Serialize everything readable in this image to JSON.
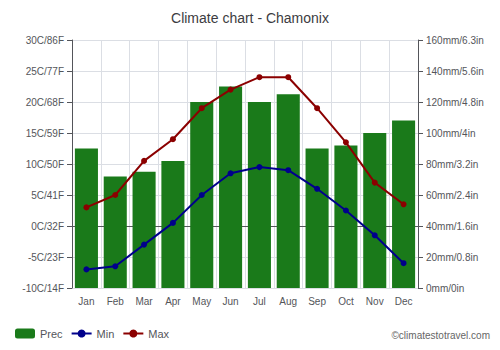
{
  "chart_data": {
    "type": "bar",
    "title": "Climate chart - Chamonix",
    "annotations": [
      "©climatestotravel.com"
    ],
    "categories": [
      "Jan",
      "Feb",
      "Mar",
      "Apr",
      "May",
      "Jun",
      "Jul",
      "Aug",
      "Sep",
      "Oct",
      "Nov",
      "Dec"
    ],
    "series": [
      {
        "name": "Prec",
        "type": "bar",
        "axis": "y2",
        "color": "#1a7a1a",
        "values": [
          90,
          72,
          75,
          82,
          120,
          130,
          120,
          125,
          90,
          92,
          100,
          108
        ]
      },
      {
        "name": "Min",
        "type": "line",
        "marker": "circle",
        "color": "#00008b",
        "values": [
          -7,
          -6.5,
          -3,
          0.5,
          5,
          8.5,
          9.5,
          9,
          6,
          2.5,
          -1.5,
          -6
        ]
      },
      {
        "name": "Max",
        "type": "line",
        "marker": "circle",
        "color": "#8b0000",
        "values": [
          3,
          5,
          10.5,
          14,
          19,
          22,
          24,
          24,
          19,
          13.5,
          7,
          3.5
        ]
      }
    ],
    "ylim": [
      -10,
      30
    ],
    "yticks": [
      {
        "value": -10,
        "label": "-10C/14F"
      },
      {
        "value": -5,
        "label": "-5C/23F"
      },
      {
        "value": 0,
        "label": "0C/32F"
      },
      {
        "value": 5,
        "label": "5C/41F"
      },
      {
        "value": 10,
        "label": "10C/50F"
      },
      {
        "value": 15,
        "label": "15C/59F"
      },
      {
        "value": 20,
        "label": "20C/68F"
      },
      {
        "value": 25,
        "label": "25C/77F"
      },
      {
        "value": 30,
        "label": "30C/86F"
      }
    ],
    "y2lim": [
      0,
      160
    ],
    "y2ticks": [
      {
        "value": 0,
        "label": "0mm/0in"
      },
      {
        "value": 20,
        "label": "20mm/0.8in"
      },
      {
        "value": 40,
        "label": "40mm/1.6in"
      },
      {
        "value": 60,
        "label": "60mm/2.4in"
      },
      {
        "value": 80,
        "label": "80mm/3.2in"
      },
      {
        "value": 100,
        "label": "100mm/4in"
      },
      {
        "value": 120,
        "label": "120mm/4.8in"
      },
      {
        "value": 140,
        "label": "140mm/5.6in"
      },
      {
        "value": 160,
        "label": "160mm/6.3in"
      }
    ],
    "grid": true,
    "legend": "lower left"
  }
}
